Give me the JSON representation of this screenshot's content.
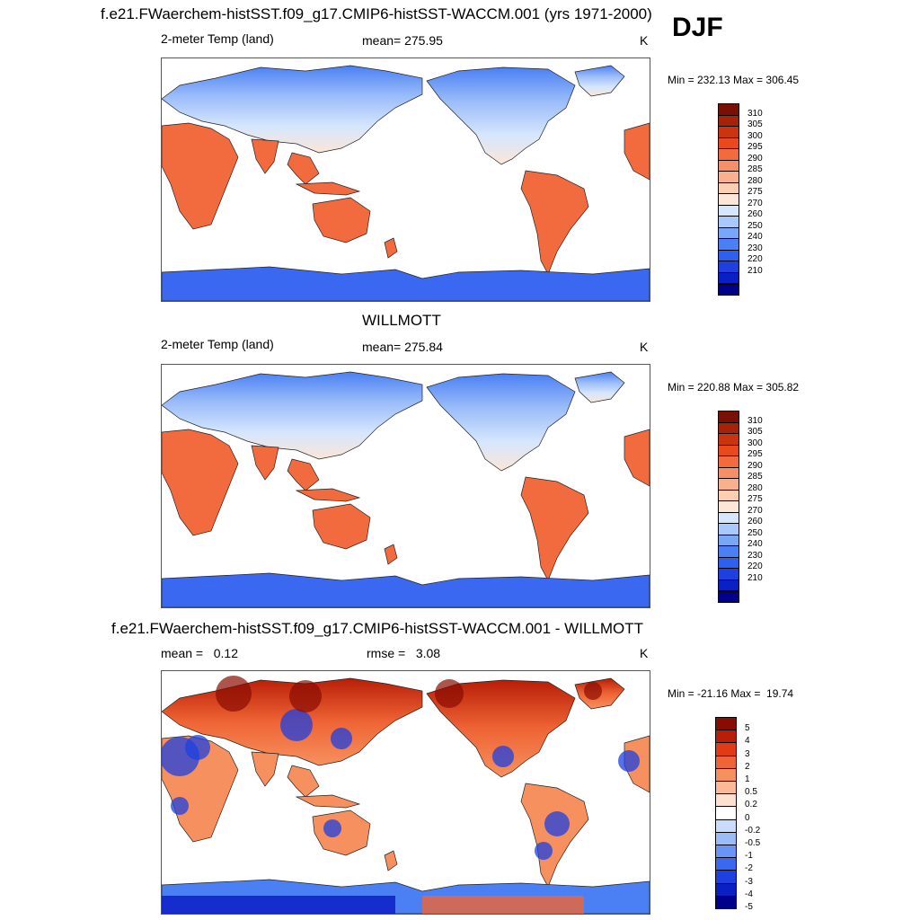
{
  "season": "DJF",
  "colors": {
    "abs_scale": [
      "#00008b",
      "#0a1fc4",
      "#1e40e0",
      "#2f5fee",
      "#4a80f4",
      "#7aa6f8",
      "#a9c8fb",
      "#d6e6fd",
      "#fbe6d8",
      "#fccfb3",
      "#f9b08f",
      "#f68e67",
      "#f26b3f",
      "#e84a1e",
      "#cc3410",
      "#a62208",
      "#7a0f04"
    ],
    "diff_scale": [
      "#00008b",
      "#0a1fc4",
      "#1e40e0",
      "#3a68f0",
      "#6a94f6",
      "#9bbcf9",
      "#c9dcfc",
      "#ffffff",
      "#fde0d0",
      "#fbb99a",
      "#f6915f",
      "#ef6434",
      "#e23a14",
      "#b81e08",
      "#8a0b02"
    ]
  },
  "panels": [
    {
      "title": "f.e21.FWaerchem-histSST.f09_g17.CMIP6-histSST-WACCM.001 (yrs 1971-2000)",
      "left_label": "2-meter Temp (land)",
      "center_label": "mean= 275.95",
      "units": "K",
      "minmax": "Min = 232.13 Max = 306.45",
      "colorbar_ticks": [
        "310",
        "305",
        "300",
        "295",
        "290",
        "285",
        "280",
        "275",
        "270",
        "260",
        "250",
        "240",
        "230",
        "220",
        "210"
      ]
    },
    {
      "title": "WILLMOTT",
      "left_label": "2-meter Temp (land)",
      "center_label": "mean= 275.84",
      "units": "K",
      "minmax": "Min = 220.88 Max = 305.82",
      "colorbar_ticks": [
        "310",
        "305",
        "300",
        "295",
        "290",
        "285",
        "280",
        "275",
        "270",
        "260",
        "250",
        "240",
        "230",
        "220",
        "210"
      ]
    },
    {
      "title": "f.e21.FWaerchem-histSST.f09_g17.CMIP6-histSST-WACCM.001 - WILLMOTT",
      "left_label": "mean =   0.12",
      "center_label": "rmse =   3.08",
      "units": "K",
      "minmax": "Min = -21.16 Max =  19.74",
      "colorbar_ticks": [
        "5",
        "4",
        "3",
        "2",
        "1",
        "0.5",
        "0.2",
        "0",
        "-0.2",
        "-0.5",
        "-1",
        "-2",
        "-3",
        "-4",
        "-5"
      ]
    }
  ]
}
